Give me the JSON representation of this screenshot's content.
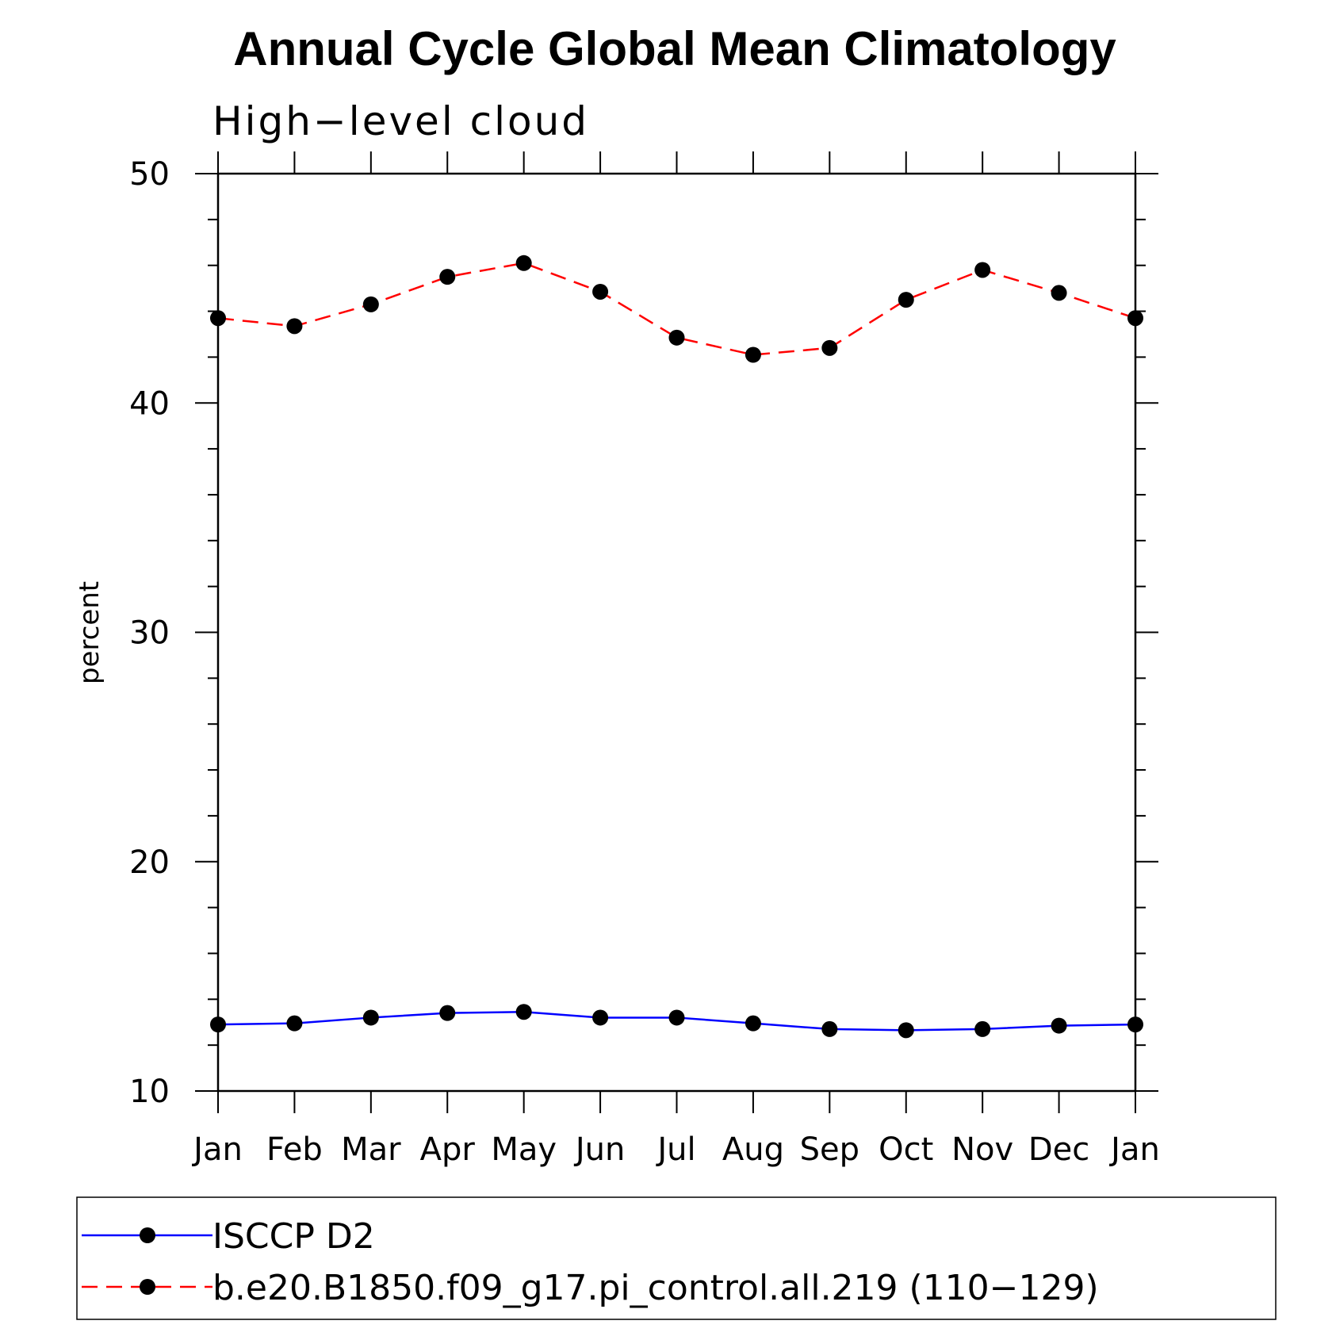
{
  "chart_data": {
    "type": "line",
    "title": "Annual Cycle Global Mean Climatology",
    "subtitle": "High−level cloud",
    "xlabel": "",
    "ylabel": "percent",
    "ylim": [
      10,
      50
    ],
    "yticks": [
      "10",
      "20",
      "30",
      "40",
      "50"
    ],
    "categories": [
      "Jan",
      "Feb",
      "Mar",
      "Apr",
      "May",
      "Jun",
      "Jul",
      "Aug",
      "Sep",
      "Oct",
      "Nov",
      "Dec",
      "Jan"
    ],
    "grid": false,
    "legend_position": "bottom",
    "series": [
      {
        "name": "ISCCP D2",
        "color": "#0000ff",
        "line_style": "solid",
        "marker": "filled-circle",
        "values": [
          12.9,
          12.95,
          13.2,
          13.4,
          13.45,
          13.2,
          13.2,
          12.95,
          12.7,
          12.65,
          12.7,
          12.85,
          12.9
        ]
      },
      {
        "name": "b.e20.B1850.f09_g17.pi_control.all.219 (110−129)",
        "color": "#ff0000",
        "line_style": "dashed",
        "marker": "filled-circle",
        "values": [
          43.7,
          43.35,
          44.3,
          45.5,
          46.1,
          44.85,
          42.85,
          42.1,
          42.4,
          44.5,
          45.8,
          44.8,
          43.7
        ]
      }
    ]
  }
}
